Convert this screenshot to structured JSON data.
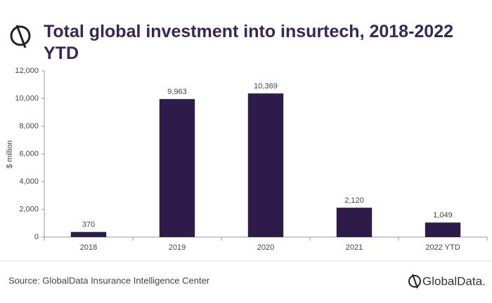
{
  "chart_data": {
    "type": "bar",
    "title": "Total global investment into insurtech, 2018-2022 YTD",
    "y_label": "$ million",
    "categories": [
      "2018",
      "2019",
      "2020",
      "2021",
      "2022 YTD"
    ],
    "values": [
      370,
      9963,
      10369,
      2120,
      1049
    ],
    "value_labels": [
      "370",
      "9,963",
      "10,369",
      "2,120",
      "1,049"
    ],
    "color": "#2f1b4a",
    "ylim": [
      0,
      12000
    ],
    "yticks": [
      0,
      {
        "value": 2000,
        "label": "2,000"
      },
      {
        "value": 4000,
        "label": "4,000"
      },
      {
        "value": 6000,
        "label": "6,000"
      },
      {
        "value": 8000,
        "label": "8,000"
      },
      {
        "value": 10000,
        "label": "10,000"
      },
      {
        "value": 12000,
        "label": "12,000"
      }
    ],
    "grid": false,
    "source": "Source: GlobalData Insurance Intelligence Center",
    "brand": "GlobalData."
  }
}
